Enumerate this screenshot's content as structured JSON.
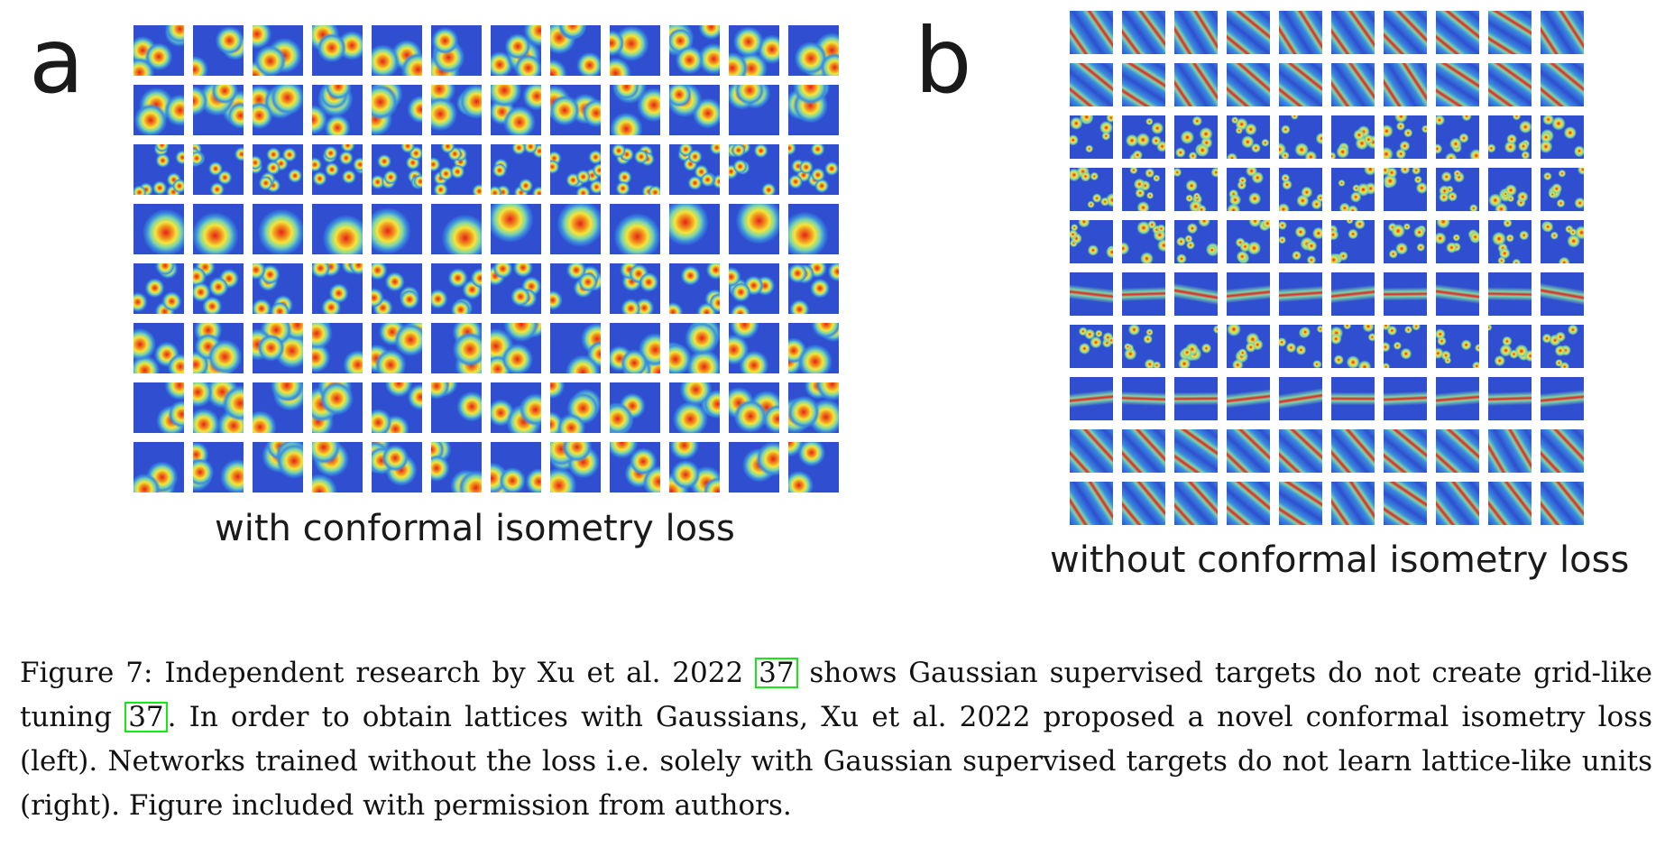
{
  "panels": [
    {
      "letter": "a",
      "caption": "with conformal isometry loss",
      "rows": 8,
      "cols": 12,
      "row_types": [
        "blob",
        "blob",
        "dense",
        "big",
        "medium",
        "blob",
        "blob",
        "blob"
      ]
    },
    {
      "letter": "b",
      "caption": "without conformal isometry loss",
      "rows": 10,
      "cols": 10,
      "row_types": [
        "stripe",
        "stripe",
        "noise",
        "noise",
        "noise",
        "band",
        "noise",
        "band",
        "stripe",
        "stripe"
      ]
    }
  ],
  "caption": {
    "p1": "Figure 7: Independent research by Xu et al. 2022 ",
    "ref1": "37",
    "p2": " shows Gaussian supervised targets do not create grid-like tuning ",
    "ref2": "37",
    "p3": ". In order to obtain lattices with Gaussians, Xu et al. 2022 proposed a novel conformal isometry loss (left). Networks trained without the loss i.e. solely with Gaussian supervised targets do not learn lattice-like units (right). Figure included with permission from authors."
  },
  "colors": {
    "background": "#2f4fd0",
    "ref_border": "#19e619"
  }
}
